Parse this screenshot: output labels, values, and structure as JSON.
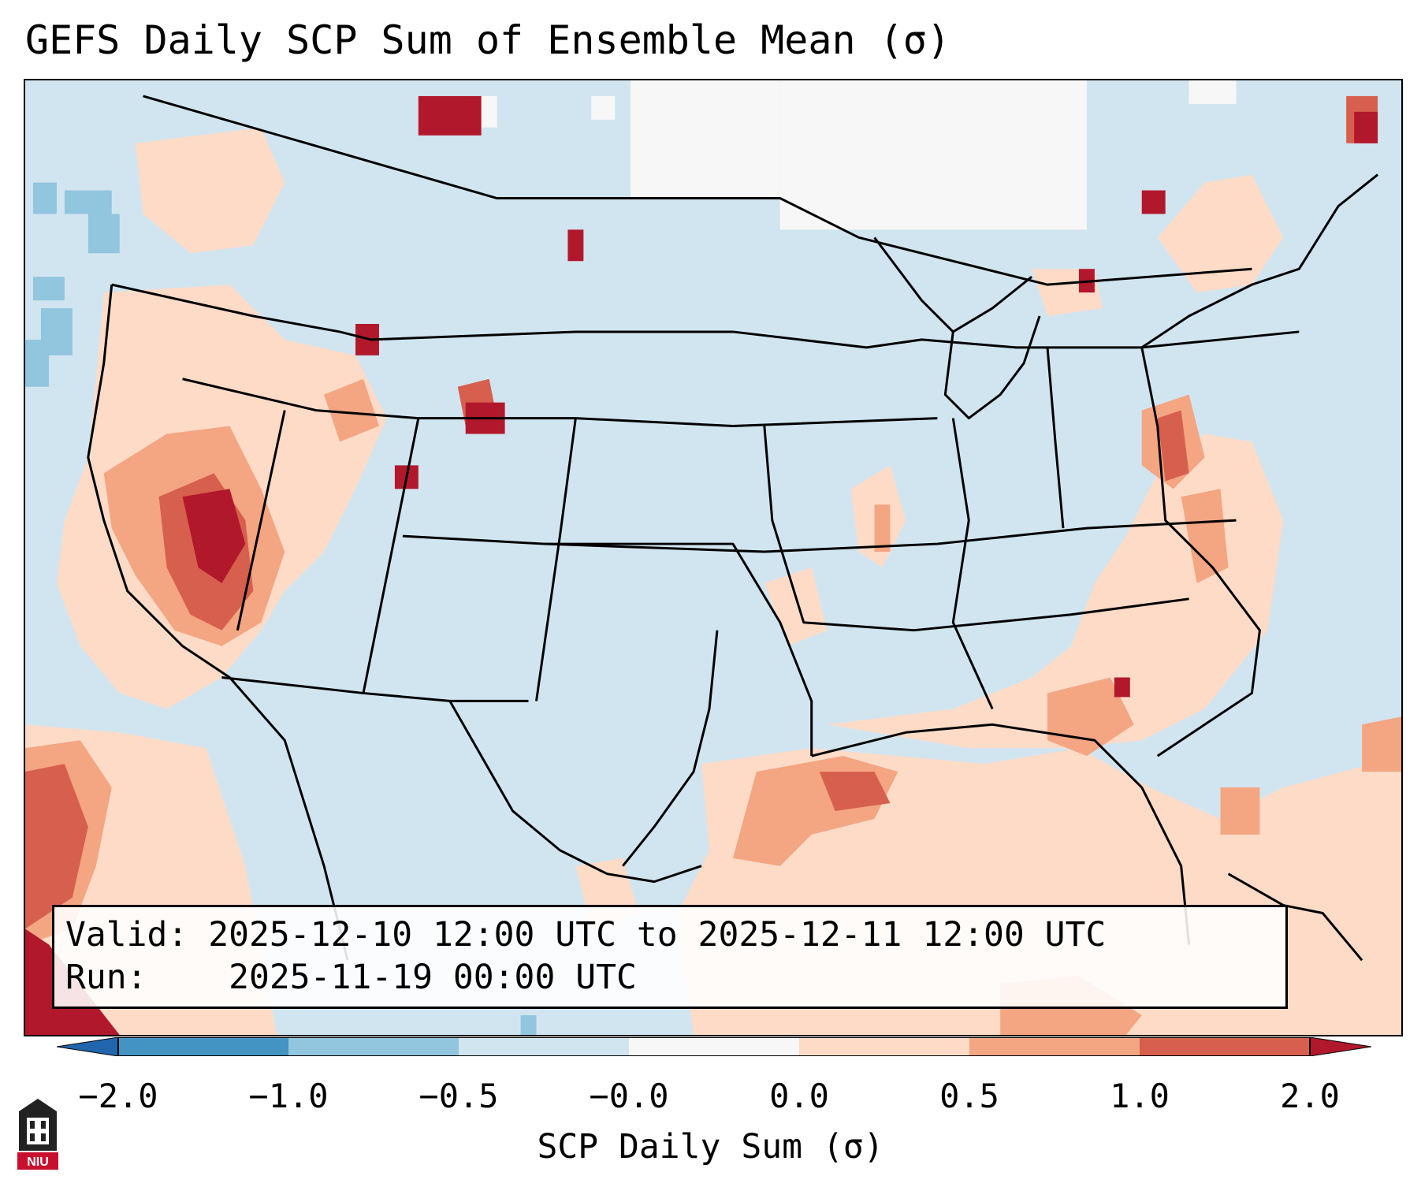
{
  "title": "GEFS Daily SCP Sum of Ensemble Mean (σ)",
  "info": {
    "valid_label": "Valid:",
    "valid_value": "2025-12-10 12:00 UTC to 2025-12-11 12:00 UTC",
    "run_label": "Run:",
    "run_value": "2025-11-19 00:00 UTC"
  },
  "colorbar": {
    "label": "SCP Daily Sum (σ)",
    "ticks": [
      "−2.0",
      "−1.0",
      "−0.5",
      "−0.0",
      "0.0",
      "0.5",
      "1.0",
      "2.0"
    ],
    "colors": [
      "#4393c3",
      "#92c5de",
      "#d1e5f0",
      "#f7f7f7",
      "#fddbc7",
      "#f4a582",
      "#d6604d"
    ],
    "under_color": "#2166ac",
    "over_color": "#b2182b"
  },
  "logo": {
    "text": "NIU"
  }
}
